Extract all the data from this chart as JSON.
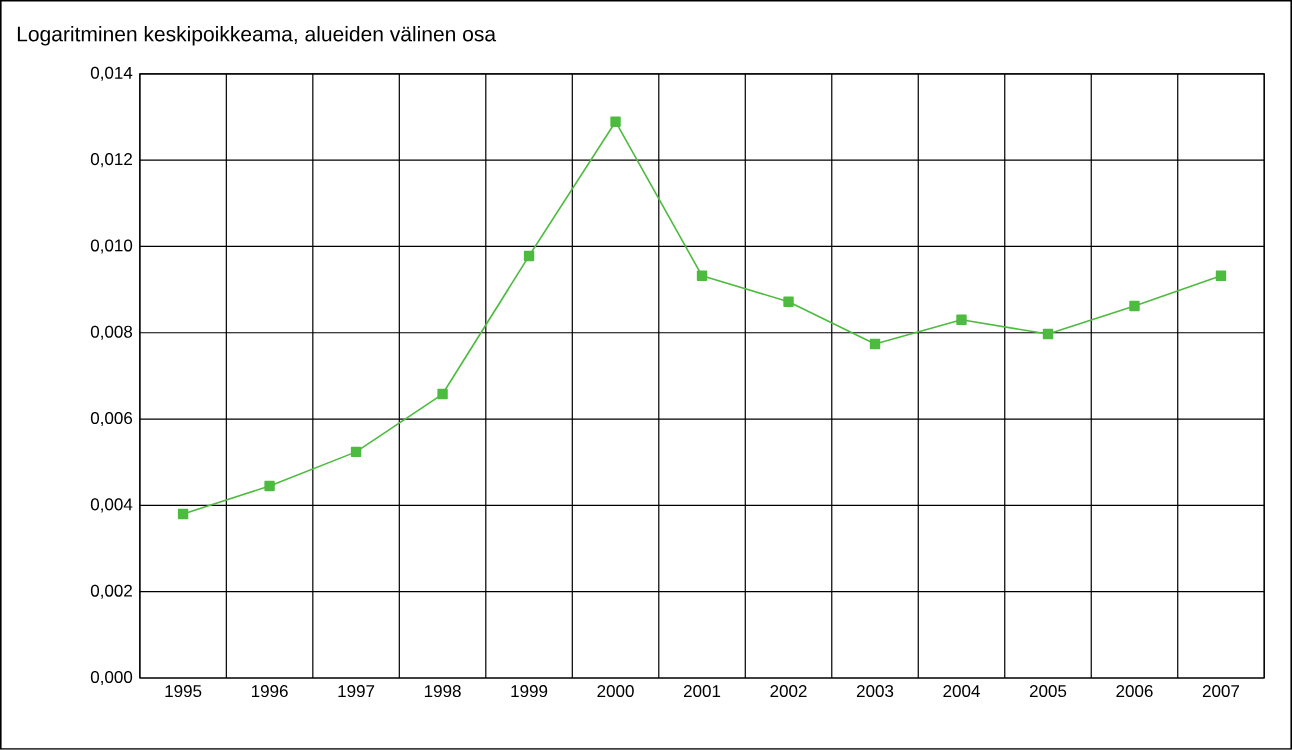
{
  "chart_data": {
    "type": "line",
    "title": "Logaritminen keskipoikkeama, alueiden välinen osa",
    "categories": [
      "1995",
      "1996",
      "1997",
      "1998",
      "1999",
      "2000",
      "2001",
      "2002",
      "2003",
      "2004",
      "2005",
      "2006",
      "2007"
    ],
    "series": [
      {
        "color": "#4dbb3f",
        "values": [
          0.0038,
          0.00445,
          0.00524,
          0.00658,
          0.00978,
          0.01289,
          0.00932,
          0.00872,
          0.00774,
          0.0083,
          0.00797,
          0.00862,
          0.00932
        ]
      }
    ],
    "ylim": [
      0,
      0.014
    ],
    "yticks": [
      {
        "value": 0,
        "label": "0,000"
      },
      {
        "value": 0.002,
        "label": "0,002"
      },
      {
        "value": 0.004,
        "label": "0,004"
      },
      {
        "value": 0.006,
        "label": "0,006"
      },
      {
        "value": 0.008,
        "label": "0,008"
      },
      {
        "value": 0.01,
        "label": "0,010"
      },
      {
        "value": 0.012,
        "label": "0,012"
      },
      {
        "value": 0.014,
        "label": "0,014"
      }
    ],
    "grid": true,
    "marker": "square",
    "line_style": "solid"
  }
}
